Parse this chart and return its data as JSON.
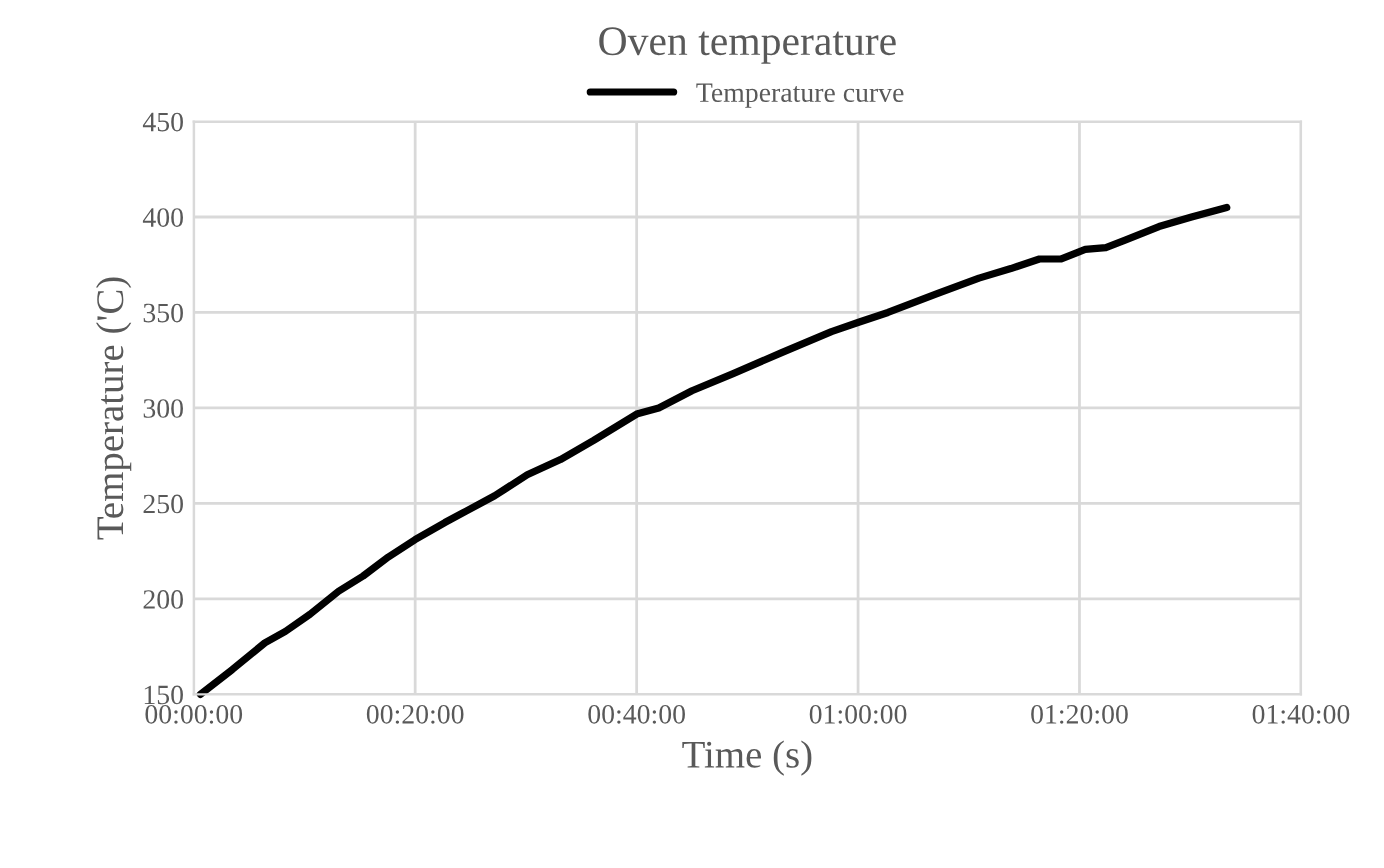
{
  "chart_data": {
    "type": "line",
    "title": "Oven temperature",
    "xlabel": "Time (s)",
    "ylabel": "Temperature ('C)",
    "x": [
      0.01,
      0.058,
      0.107,
      0.138,
      0.175,
      0.218,
      0.255,
      0.293,
      0.333,
      0.378,
      0.41,
      0.453,
      0.502,
      0.552,
      0.602,
      0.668,
      0.7,
      0.75,
      0.812,
      0.885,
      0.96,
      1.002,
      1.045,
      1.12,
      1.182,
      1.23,
      1.273,
      1.305,
      1.342,
      1.373,
      1.403,
      1.453,
      1.502,
      1.555
    ],
    "series": [
      {
        "name": "Temperature curve",
        "color": "#000000",
        "values": [
          150,
          163,
          177,
          183,
          192,
          204,
          212,
          222,
          231,
          240,
          246,
          254,
          265,
          273,
          283,
          297,
          300,
          309,
          318,
          329,
          340,
          345,
          350,
          360,
          368,
          373,
          378,
          378,
          383,
          384,
          388,
          395,
          400,
          405
        ]
      }
    ],
    "xlim": [
      0,
      1.6667
    ],
    "xticks": [
      {
        "value": 0,
        "label": "00:00:00"
      },
      {
        "value": 0.3333,
        "label": "00:20:00"
      },
      {
        "value": 0.6667,
        "label": "00:40:00"
      },
      {
        "value": 1,
        "label": "01:00:00"
      },
      {
        "value": 1.3333,
        "label": "01:20:00"
      },
      {
        "value": 1.6667,
        "label": "01:40:00"
      }
    ],
    "ylim": [
      150,
      450
    ],
    "yticks": [
      150,
      200,
      250,
      300,
      350,
      400,
      450
    ],
    "grid": true,
    "legend": "top",
    "marker": "none",
    "line_style": "solid"
  }
}
